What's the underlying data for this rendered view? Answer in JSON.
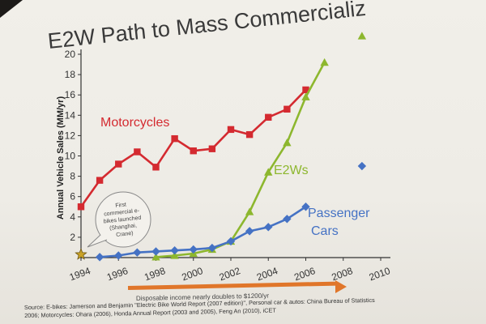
{
  "slide": {
    "title": "E2W Path to Mass Commercializ",
    "note_lines": [
      "First",
      "commercial e-",
      "bikes launched",
      "(Shanghai,",
      "Crane)"
    ],
    "income_note": "Disposable income nearly doubles to $1200/yr",
    "source_lines": [
      "Source: E-bikes: Jamerson and Benjamin \"Electric Bike World Report (2007 edition)\", Personal car & autos: China Bureau of Statistics",
      "2006; Motorcycles: Ohara (2006), Honda Annual Report (2003 and 2005), Feng An (2010), iCET"
    ]
  },
  "chart_data": {
    "type": "line",
    "title": "",
    "xlabel": "",
    "ylabel": "Annual Vehicle Sales (MM/yr)",
    "xlim": [
      1994,
      2010
    ],
    "ylim": [
      0,
      20
    ],
    "x_ticks": [
      1994,
      1996,
      1998,
      2000,
      2002,
      2004,
      2006,
      2008,
      2010
    ],
    "y_ticks": [
      2,
      4,
      6,
      8,
      10,
      12,
      14,
      16,
      18,
      20
    ],
    "grid": false,
    "legend": "inline labels",
    "series": [
      {
        "name": "Motorcycles",
        "color": "#d42a30",
        "marker": "square",
        "x": [
          1994,
          1995,
          1996,
          1997,
          1998,
          1999,
          2000,
          2001,
          2002,
          2003,
          2004,
          2005,
          2006
        ],
        "y": [
          5.0,
          7.6,
          9.2,
          10.4,
          8.9,
          11.7,
          10.5,
          10.7,
          12.6,
          12.1,
          13.8,
          14.6,
          16.5
        ]
      },
      {
        "name": "E2Ws",
        "color": "#8db72e",
        "marker": "triangle",
        "x": [
          1998,
          1999,
          2000,
          2001,
          2002,
          2003,
          2004,
          2005,
          2006,
          2007
        ],
        "y": [
          0.05,
          0.2,
          0.4,
          0.8,
          1.6,
          4.5,
          8.4,
          11.3,
          15.8,
          19.2
        ]
      },
      {
        "name": "Passenger Cars",
        "name_lines": [
          "Passenger",
          "Cars"
        ],
        "color": "#4572c4",
        "marker": "diamond",
        "x": [
          1995,
          1996,
          1997,
          1998,
          1999,
          2000,
          2001,
          2002,
          2003,
          2004,
          2005,
          2006
        ],
        "y": [
          0.05,
          0.2,
          0.5,
          0.6,
          0.7,
          0.8,
          0.95,
          1.6,
          2.6,
          3.0,
          3.8,
          5.0
        ]
      }
    ],
    "outlier_points": [
      {
        "series": "E2Ws",
        "x": 2009,
        "y": 21.8
      },
      {
        "series": "Passenger Cars",
        "x": 2009,
        "y": 9.0
      }
    ],
    "annotations": [
      {
        "type": "star",
        "x": 1994,
        "y": 0.3,
        "color": "#c9a227"
      }
    ]
  }
}
